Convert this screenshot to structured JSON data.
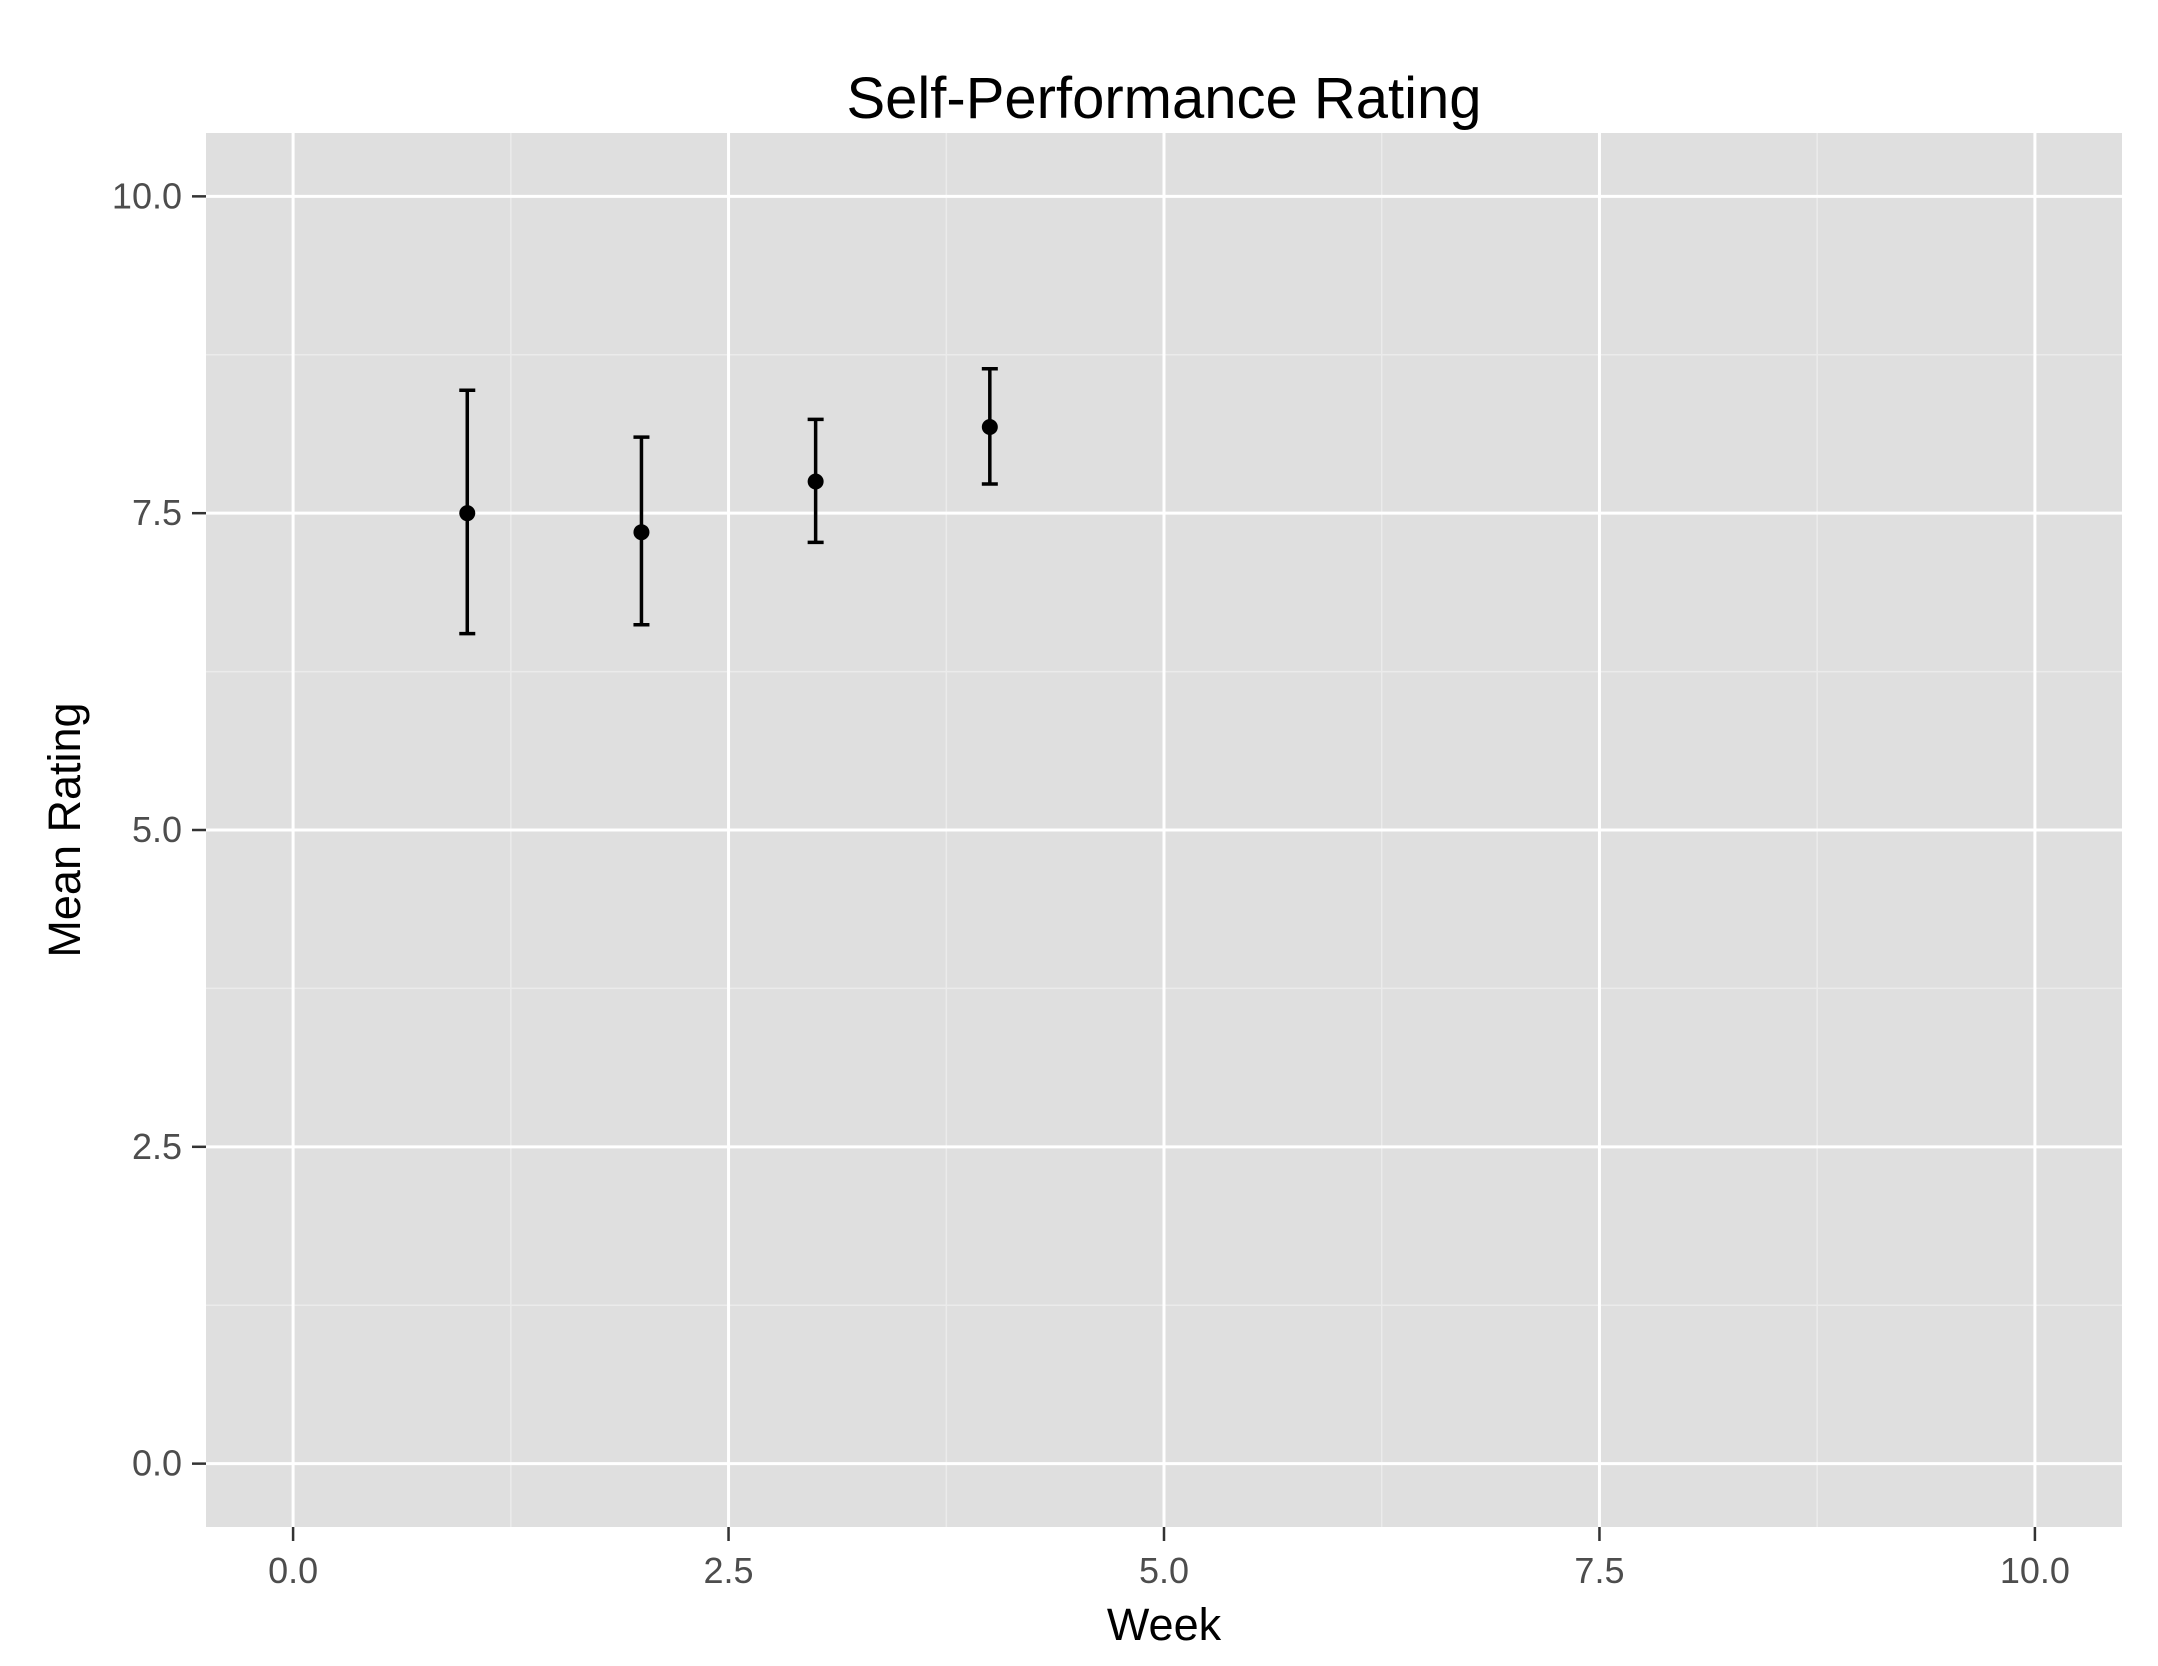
{
  "chart_data": {
    "type": "scatter",
    "title": "Self-Performance Rating",
    "xlabel": "Week",
    "ylabel": "Mean Rating",
    "xlim": [
      -0.5,
      10.5
    ],
    "ylim": [
      -0.5,
      10.5
    ],
    "x_ticks": [
      0,
      2.5,
      5,
      7.5,
      10
    ],
    "x_tick_labels": [
      "0.0",
      "2.5",
      "5.0",
      "7.5",
      "10.0"
    ],
    "y_ticks": [
      0,
      2.5,
      5,
      7.5,
      10
    ],
    "y_tick_labels": [
      "0.0",
      "2.5",
      "5.0",
      "7.5",
      "10.0"
    ],
    "x_minor": [
      1.25,
      3.75,
      6.25,
      8.75
    ],
    "y_minor": [
      1.25,
      3.75,
      6.25,
      8.75
    ],
    "grid": true,
    "error_bars": true,
    "series": [
      {
        "points": [
          {
            "x": 1,
            "y": 7.5,
            "ymin": 6.55,
            "ymax": 8.47
          },
          {
            "x": 2,
            "y": 7.35,
            "ymin": 6.62,
            "ymax": 8.1
          },
          {
            "x": 3,
            "y": 7.75,
            "ymin": 7.27,
            "ymax": 8.24
          },
          {
            "x": 4,
            "y": 8.18,
            "ymin": 7.73,
            "ymax": 8.64
          }
        ]
      }
    ],
    "colors": {
      "panel": "#dfdfdf",
      "grid_major": "#ffffff",
      "grid_minor": "#ebebeb",
      "tick": "#333333",
      "point": "#000000"
    }
  }
}
